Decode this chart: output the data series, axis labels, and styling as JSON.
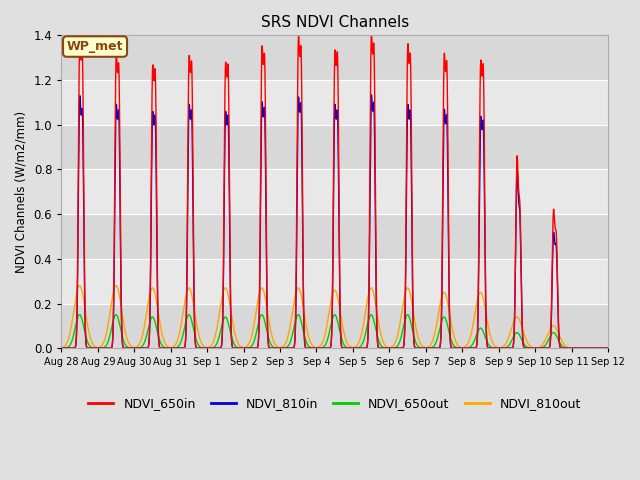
{
  "title": "SRS NDVI Channels",
  "ylabel": "NDVI Channels (W/m2/mm)",
  "ylim": [
    0,
    1.4
  ],
  "fig_bg_color": "#e0e0e0",
  "plot_bg_color": "#f0f0f0",
  "annotation_text": "WP_met",
  "annotation_bg": "#ffffcc",
  "annotation_border": "#8B4513",
  "legend_labels": [
    "NDVI_650in",
    "NDVI_810in",
    "NDVI_650out",
    "NDVI_810out"
  ],
  "legend_colors": [
    "#ff0000",
    "#0000cd",
    "#00cc00",
    "#ffa500"
  ],
  "peak_positions_days": [
    0.5,
    1.5,
    2.5,
    3.5,
    4.5,
    5.5,
    6.5,
    7.5,
    8.5,
    9.5,
    10.5,
    11.5,
    12.5,
    13.5
  ],
  "ndvi_650in_peaks": [
    1.27,
    1.21,
    1.16,
    1.2,
    1.17,
    1.24,
    1.28,
    1.22,
    1.29,
    1.25,
    1.21,
    1.18,
    0.81,
    0.58
  ],
  "ndvi_810in_peaks": [
    1.04,
    1.0,
    0.97,
    1.0,
    0.97,
    1.01,
    1.03,
    1.0,
    1.04,
    1.0,
    0.98,
    0.95,
    0.75,
    0.48
  ],
  "ndvi_650out_peaks": [
    0.15,
    0.15,
    0.14,
    0.15,
    0.14,
    0.15,
    0.15,
    0.15,
    0.15,
    0.15,
    0.14,
    0.09,
    0.07,
    0.07
  ],
  "ndvi_810out_peaks": [
    0.28,
    0.28,
    0.27,
    0.27,
    0.27,
    0.27,
    0.27,
    0.26,
    0.27,
    0.27,
    0.25,
    0.25,
    0.14,
    0.1
  ],
  "ndvi_650in_peaks2": [
    1.21,
    1.16,
    1.14,
    1.17,
    1.16,
    1.2,
    1.23,
    1.21,
    1.24,
    1.2,
    1.17,
    1.16,
    0.59,
    0.47
  ],
  "ndvi_810in_peaks2": [
    0.97,
    0.97,
    0.95,
    0.97,
    0.95,
    0.98,
    1.0,
    0.97,
    1.0,
    0.97,
    0.95,
    0.93,
    0.55,
    0.42
  ],
  "peak_offsets": [
    0.08,
    0.08,
    0.08,
    0.08,
    0.08,
    0.08,
    0.08,
    0.08,
    0.08,
    0.08,
    0.08,
    0.08,
    0.08,
    0.08
  ],
  "xtick_labels": [
    "Aug 28",
    "Aug 29",
    "Aug 30",
    "Aug 31",
    "Sep 1",
    "Sep 2",
    "Sep 3",
    "Sep 4",
    "Sep 5",
    "Sep 6",
    "Sep 7",
    "Sep 8",
    "Sep 9",
    "Sep 10",
    "Sep 11",
    "Sep 12"
  ],
  "xtick_positions": [
    0,
    1,
    2,
    3,
    4,
    5,
    6,
    7,
    8,
    9,
    10,
    11,
    12,
    13,
    14,
    15
  ],
  "yticks": [
    0.0,
    0.2,
    0.4,
    0.6,
    0.8,
    1.0,
    1.2,
    1.4
  ],
  "grid_colors": [
    "#d8d8d8",
    "#e8e8e8"
  ]
}
